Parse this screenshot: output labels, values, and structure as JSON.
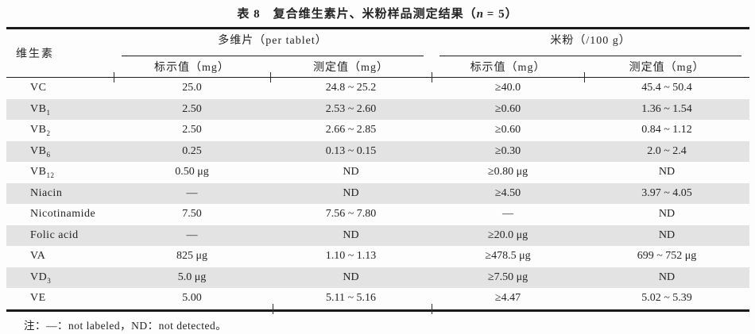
{
  "title": {
    "part1": "表 8　复合维生素片、米粉样品测定结果（",
    "n": "n",
    "part2": " = 5）"
  },
  "table": {
    "vitamin_header": "维生素",
    "groups": [
      {
        "label": "多维片（per tablet）",
        "columns": [
          "标示值（mg）",
          "测定值（mg）"
        ]
      },
      {
        "label": "米粉（/100 g）",
        "columns": [
          "标示值（mg）",
          "测定值（mg）"
        ]
      }
    ],
    "rows": [
      {
        "vitamin": "VC",
        "vitamin_sub": "",
        "tablet_labeled": "25.0",
        "tablet_measured": "24.8 ~ 25.2",
        "rice_labeled": "≥40.0",
        "rice_measured": "45.4 ~ 50.4"
      },
      {
        "vitamin": "VB",
        "vitamin_sub": "1",
        "tablet_labeled": "2.50",
        "tablet_measured": "2.53 ~ 2.60",
        "rice_labeled": "≥0.60",
        "rice_measured": "1.36 ~ 1.54"
      },
      {
        "vitamin": "VB",
        "vitamin_sub": "2",
        "tablet_labeled": "2.50",
        "tablet_measured": "2.66 ~ 2.85",
        "rice_labeled": "≥0.60",
        "rice_measured": "0.84 ~ 1.12"
      },
      {
        "vitamin": "VB",
        "vitamin_sub": "6",
        "tablet_labeled": "0.25",
        "tablet_measured": "0.13 ~ 0.15",
        "rice_labeled": "≥0.30",
        "rice_measured": "2.0 ~ 2.4"
      },
      {
        "vitamin": "VB",
        "vitamin_sub": "12",
        "tablet_labeled": "0.50 μg",
        "tablet_measured": "ND",
        "rice_labeled": "≥0.80 μg",
        "rice_measured": "ND"
      },
      {
        "vitamin": "Niacin",
        "vitamin_sub": "",
        "tablet_labeled": "—",
        "tablet_measured": "ND",
        "rice_labeled": "≥4.50",
        "rice_measured": "3.97 ~ 4.05"
      },
      {
        "vitamin": "Nicotinamide",
        "vitamin_sub": "",
        "tablet_labeled": "7.50",
        "tablet_measured": "7.56 ~ 7.80",
        "rice_labeled": "—",
        "rice_measured": "ND"
      },
      {
        "vitamin": "Folic acid",
        "vitamin_sub": "",
        "tablet_labeled": "—",
        "tablet_measured": "ND",
        "rice_labeled": "≥20.0 μg",
        "rice_measured": "ND"
      },
      {
        "vitamin": "VA",
        "vitamin_sub": "",
        "tablet_labeled": "825 μg",
        "tablet_measured": "1.10 ~ 1.13",
        "rice_labeled": "≥478.5 μg",
        "rice_measured": "699 ~ 752 μg"
      },
      {
        "vitamin": "VD",
        "vitamin_sub": "3",
        "tablet_labeled": "5.0 μg",
        "tablet_measured": "ND",
        "rice_labeled": "≥7.50 μg",
        "rice_measured": "ND"
      },
      {
        "vitamin": "VE",
        "vitamin_sub": "",
        "tablet_labeled": "5.00",
        "tablet_measured": "5.11 ~ 5.16",
        "rice_labeled": "≥4.47",
        "rice_measured": "5.02 ~ 5.39"
      }
    ]
  },
  "note": "注：—：not labeled，ND：not detected。",
  "colors": {
    "paper": "#fdfdfd",
    "stripe": "#e3e3e3",
    "rule": "#1b1b1b",
    "ink": "#242424"
  }
}
